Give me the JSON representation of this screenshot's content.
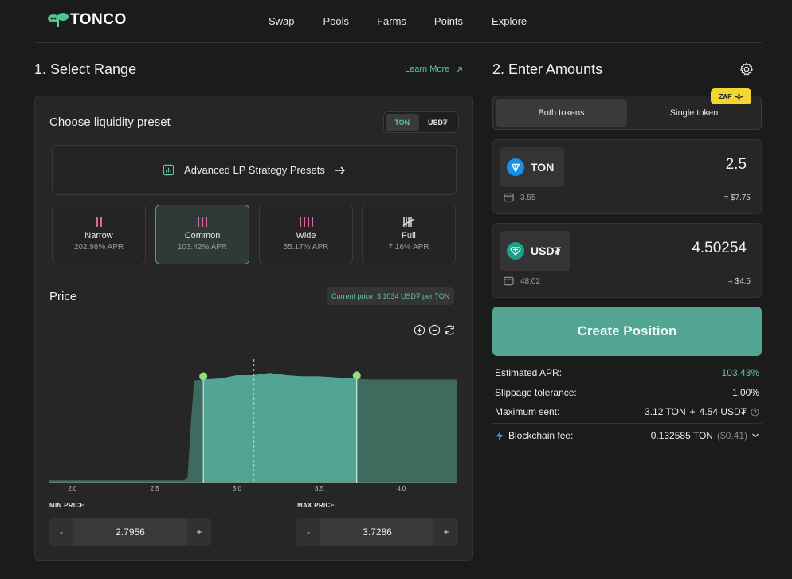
{
  "brand": {
    "name": "TONCO"
  },
  "nav": [
    "Swap",
    "Pools",
    "Farms",
    "Points",
    "Explore"
  ],
  "left": {
    "title": "1. Select Range",
    "learn_more": "Learn More",
    "preset_heading": "Choose liquidity preset",
    "token_toggle": [
      "TON",
      "USD₮"
    ],
    "advanced": "Advanced LP Strategy Presets",
    "presets": [
      {
        "name": "Narrow",
        "apr": "202.98% APR",
        "bars": 2
      },
      {
        "name": "Common",
        "apr": "103.42% APR",
        "bars": 3,
        "active": true
      },
      {
        "name": "Wide",
        "apr": "55.17% APR",
        "bars": 4
      },
      {
        "name": "Full",
        "apr": "7.16% APR",
        "bars": 5
      }
    ],
    "price_heading": "Price",
    "current_price": "Current price: 3.1034 USD₮ per TON",
    "min_label": "MIN PRICE",
    "max_label": "MAX PRICE",
    "min_value": "2.7956",
    "max_value": "3.7286",
    "minus": "-",
    "plus": "+"
  },
  "chart_data": {
    "type": "area",
    "xlim": [
      1.86,
      4.34
    ],
    "x_ticks": [
      "2.0",
      "2.5",
      "3.0",
      "3.5",
      "4.0"
    ],
    "x_tick_values": [
      2.0,
      2.5,
      3.0,
      3.5,
      4.0
    ],
    "current_price": 3.1034,
    "range_min": 2.7956,
    "range_max": 3.7286,
    "liquidity": {
      "x": [
        1.86,
        2.68,
        2.7,
        2.72,
        2.74,
        2.8,
        2.9,
        3.0,
        3.1,
        3.2,
        3.3,
        3.4,
        3.5,
        3.6,
        3.7,
        3.8,
        3.9,
        4.0,
        4.2,
        4.34
      ],
      "y": [
        0.02,
        0.02,
        0.05,
        0.55,
        0.95,
        0.96,
        0.97,
        1.0,
        1.0,
        1.02,
        1.0,
        0.99,
        0.99,
        0.98,
        0.97,
        0.96,
        0.96,
        0.96,
        0.96,
        0.96
      ]
    },
    "colors": {
      "in_range": "#52a592",
      "out_range": "#3f6b5f",
      "handle": "#8fe07a"
    }
  },
  "right": {
    "title": "2. Enter Amounts",
    "zap": "ZAP",
    "modes": [
      "Both tokens",
      "Single token"
    ],
    "tokens": [
      {
        "symbol": "TON",
        "amount": "2.5",
        "balance": "3.55",
        "usd": "≈ $7.75",
        "color": "#1a8fe6"
      },
      {
        "symbol": "USD₮",
        "amount": "4.50254",
        "balance": "48.02",
        "usd": "≈ $4.5",
        "color": "#1f9e89"
      }
    ],
    "create": "Create Position",
    "info": {
      "apr_label": "Estimated APR:",
      "apr_value": "103.43%",
      "slip_label": "Slippage tolerance:",
      "slip_value": "1.00%",
      "max_label": "Maximum sent:",
      "max_ton": "3.12 TON",
      "max_sep": "+",
      "max_usdt": "4.54 USD₮",
      "fee_label": "Blockchain fee:",
      "fee_value": "0.132585 TON",
      "fee_usd": "($0.41)"
    }
  }
}
